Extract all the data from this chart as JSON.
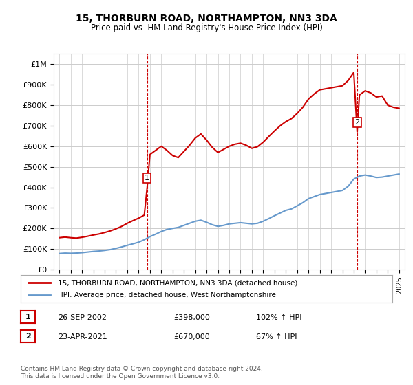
{
  "title": "15, THORBURN ROAD, NORTHAMPTON, NN3 3DA",
  "subtitle": "Price paid vs. HM Land Registry's House Price Index (HPI)",
  "background_color": "#ffffff",
  "plot_bg_color": "#ffffff",
  "grid_color": "#cccccc",
  "red_color": "#cc0000",
  "blue_color": "#6699cc",
  "sales": [
    {
      "label": "1",
      "date_str": "26-SEP-2002",
      "year": 2002.75,
      "price": 398000,
      "hpi_pct": "102% ↑ HPI"
    },
    {
      "label": "2",
      "date_str": "23-APR-2021",
      "year": 2021.3,
      "price": 670000,
      "hpi_pct": "67% ↑ HPI"
    }
  ],
  "legend_line1": "15, THORBURN ROAD, NORTHAMPTON, NN3 3DA (detached house)",
  "legend_line2": "HPI: Average price, detached house, West Northamptonshire",
  "footer": "Contains HM Land Registry data © Crown copyright and database right 2024.\nThis data is licensed under the Open Government Licence v3.0.",
  "ylim": [
    0,
    1050000
  ],
  "yticks": [
    0,
    100000,
    200000,
    300000,
    400000,
    500000,
    600000,
    700000,
    800000,
    900000,
    1000000
  ],
  "ytick_labels": [
    "£0",
    "£100K",
    "£200K",
    "£300K",
    "£400K",
    "£500K",
    "£600K",
    "£700K",
    "£800K",
    "£900K",
    "£1M"
  ],
  "hpi_years": [
    1995,
    1995.5,
    1996,
    1996.5,
    1997,
    1997.5,
    1998,
    1998.5,
    1999,
    1999.5,
    2000,
    2000.5,
    2001,
    2001.5,
    2002,
    2002.5,
    2003,
    2003.5,
    2004,
    2004.5,
    2005,
    2005.5,
    2006,
    2006.5,
    2007,
    2007.5,
    2008,
    2008.5,
    2009,
    2009.5,
    2010,
    2010.5,
    2011,
    2011.5,
    2012,
    2012.5,
    2013,
    2013.5,
    2014,
    2014.5,
    2015,
    2015.5,
    2016,
    2016.5,
    2017,
    2017.5,
    2018,
    2018.5,
    2019,
    2019.5,
    2020,
    2020.5,
    2021,
    2021.5,
    2022,
    2022.5,
    2023,
    2023.5,
    2024,
    2024.5,
    2025
  ],
  "hpi_values": [
    78000,
    80000,
    79000,
    80000,
    82000,
    85000,
    88000,
    90000,
    93000,
    97000,
    103000,
    110000,
    118000,
    125000,
    133000,
    145000,
    160000,
    172000,
    185000,
    195000,
    200000,
    205000,
    215000,
    225000,
    235000,
    240000,
    230000,
    218000,
    210000,
    215000,
    222000,
    225000,
    228000,
    225000,
    222000,
    225000,
    235000,
    248000,
    262000,
    275000,
    288000,
    295000,
    310000,
    325000,
    345000,
    355000,
    365000,
    370000,
    375000,
    380000,
    385000,
    405000,
    440000,
    455000,
    460000,
    455000,
    448000,
    450000,
    455000,
    460000,
    465000
  ],
  "red_years": [
    1995,
    1995.5,
    1996,
    1996.5,
    1997,
    1997.5,
    1998,
    1998.5,
    1999,
    1999.5,
    2000,
    2000.5,
    2001,
    2001.5,
    2002,
    2002.5,
    2002.75,
    2003,
    2003.5,
    2004,
    2004.5,
    2005,
    2005.5,
    2006,
    2006.5,
    2007,
    2007.5,
    2008,
    2008.5,
    2009,
    2009.5,
    2010,
    2010.5,
    2011,
    2011.5,
    2012,
    2012.5,
    2013,
    2013.5,
    2014,
    2014.5,
    2015,
    2015.5,
    2016,
    2016.5,
    2017,
    2017.5,
    2018,
    2018.5,
    2019,
    2019.5,
    2020,
    2020.5,
    2021,
    2021.3,
    2021.5,
    2022,
    2022.5,
    2023,
    2023.5,
    2024,
    2024.5,
    2025
  ],
  "red_values": [
    155000,
    158000,
    155000,
    153000,
    157000,
    162000,
    168000,
    173000,
    180000,
    188000,
    198000,
    210000,
    225000,
    238000,
    250000,
    265000,
    398000,
    560000,
    580000,
    600000,
    580000,
    555000,
    545000,
    575000,
    605000,
    640000,
    660000,
    630000,
    595000,
    570000,
    585000,
    600000,
    610000,
    615000,
    605000,
    590000,
    598000,
    620000,
    648000,
    675000,
    700000,
    720000,
    735000,
    760000,
    790000,
    830000,
    855000,
    875000,
    880000,
    885000,
    890000,
    895000,
    920000,
    960000,
    670000,
    850000,
    870000,
    860000,
    840000,
    845000,
    800000,
    790000,
    785000
  ]
}
